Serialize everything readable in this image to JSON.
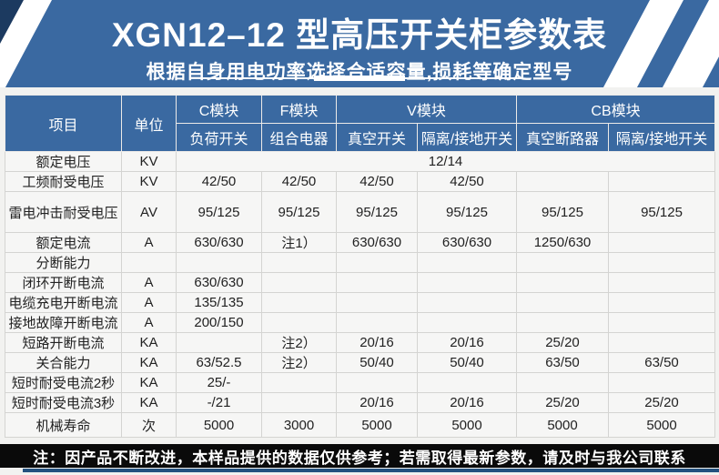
{
  "banner": {
    "title": "XGN12–12 型高压开关柜参数表",
    "subtitle": "根据自身用电功率选择合适容量,损耗等确定型号"
  },
  "table": {
    "header": {
      "item": "项目",
      "unit": "单位",
      "groups": [
        {
          "label": "C模块",
          "subs": [
            "负荷开关"
          ]
        },
        {
          "label": "F模块",
          "subs": [
            "组合电器"
          ]
        },
        {
          "label": "V模块",
          "subs": [
            "真空开关",
            "隔离/接地开关"
          ]
        },
        {
          "label": "CB模块",
          "subs": [
            "真空断路器",
            "隔离/接地开关"
          ]
        }
      ]
    },
    "rows": [
      {
        "label": "额定电压",
        "unit": "KV",
        "merged": "12/14"
      },
      {
        "label": "工频耐受电压",
        "unit": "KV",
        "values": [
          "42/50",
          "42/50",
          "42/50",
          "42/50",
          "",
          ""
        ]
      },
      {
        "label": "雷电冲击耐受电压",
        "unit": "AV",
        "tall": true,
        "values": [
          "95/125",
          "95/125",
          "95/125",
          "95/125",
          "95/125",
          "95/125"
        ]
      },
      {
        "label": "额定电流",
        "unit": "A",
        "values": [
          "630/630",
          "注1）",
          "630/630",
          "630/630",
          "1250/630",
          ""
        ]
      },
      {
        "label": "分断能力",
        "unit": "",
        "values": [
          "",
          "",
          "",
          "",
          "",
          ""
        ]
      },
      {
        "label": "闭环开断电流",
        "unit": "A",
        "values": [
          "630/630",
          "",
          "",
          "",
          "",
          ""
        ]
      },
      {
        "label": "电缆充电开断电流",
        "unit": "A",
        "values": [
          "135/135",
          "",
          "",
          "",
          "",
          ""
        ]
      },
      {
        "label": "接地故障开断电流",
        "unit": "A",
        "values": [
          "200/150",
          "",
          "",
          "",
          "",
          ""
        ]
      },
      {
        "label": "短路开断电流",
        "unit": "KA",
        "values": [
          "",
          "注2）",
          "20/16",
          "20/16",
          "25/20",
          ""
        ]
      },
      {
        "label": "关合能力",
        "unit": "KA",
        "values": [
          "63/52.5",
          "注2）",
          "50/40",
          "50/40",
          "63/50",
          "63/50"
        ]
      },
      {
        "label": "短时耐受电流2秒",
        "unit": "KA",
        "values": [
          "25/-",
          "",
          "",
          "",
          "",
          ""
        ]
      },
      {
        "label": "短时耐受电流3秒",
        "unit": "KA",
        "values": [
          "-/21",
          "",
          "20/16",
          "20/16",
          "25/20",
          "25/20"
        ]
      },
      {
        "label": "机械寿命",
        "unit": "次",
        "values": [
          "5000",
          "3000",
          "5000",
          "5000",
          "5000",
          "5000"
        ]
      }
    ]
  },
  "footer": {
    "notice": "注：因产品不断改进，本样品提供的数据仅供参考；若需取得最新参数，请及时与我公司联系"
  },
  "colors": {
    "banner_blue": "#3a69a1",
    "banner_navy": "#1c3a60",
    "header_blue": "#3a69a1",
    "footer_black": "#0a0a0a",
    "accent_line": "#24517f"
  }
}
